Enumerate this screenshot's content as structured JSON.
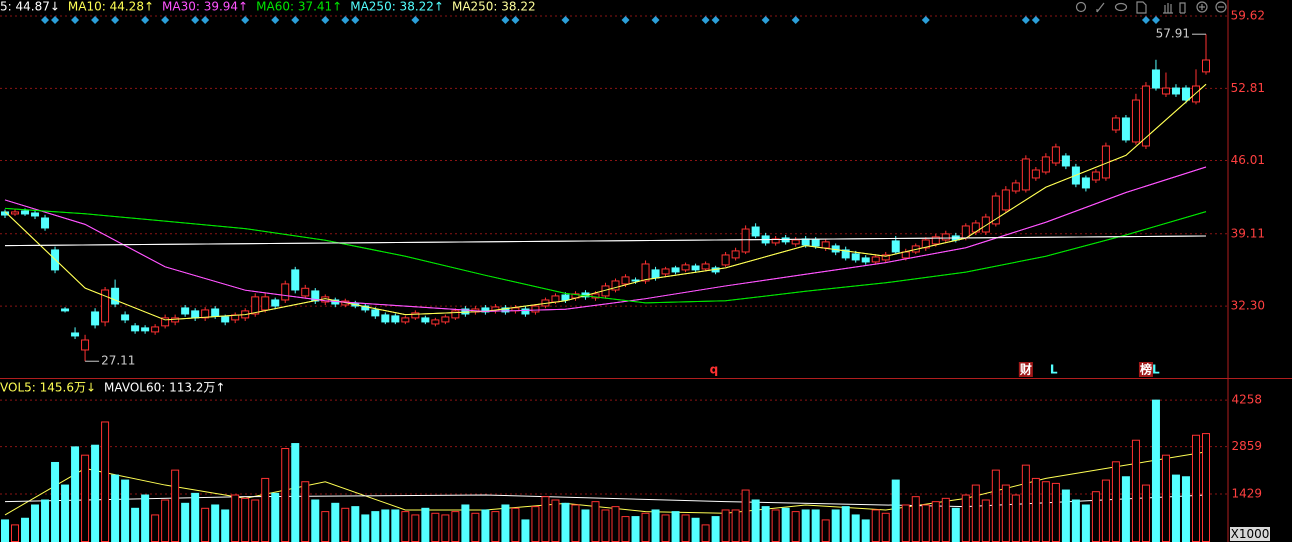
{
  "chart_data": {
    "type": "candlestick",
    "header": [
      {
        "label": "5: 44.87↓",
        "color": "#ffffff"
      },
      {
        "label": "MA10: 44.28↑",
        "color": "#ffff54"
      },
      {
        "label": "MA30: 39.94↑",
        "color": "#ff54ff"
      },
      {
        "label": "MA60: 37.41↑",
        "color": "#00e600"
      },
      {
        "label": "MA250: 38.22↑",
        "color": "#54ffff"
      },
      {
        "label": "MA250: 38.22",
        "color": "#ffff9c"
      }
    ],
    "up_color": "#ff3232",
    "down_color": "#54ffff",
    "open": [
      41.17,
      40.98,
      41.26,
      41.07,
      40.6,
      37.59,
      32.03,
      29.77,
      28.17,
      31.75,
      30.81,
      33.98,
      31.47,
      30.44,
      30.25,
      29.87,
      30.44,
      30.81,
      32.13,
      31.85,
      31.19,
      32.03,
      31.28,
      31.0,
      31.19,
      31.56,
      31.94,
      32.88,
      32.88,
      35.71,
      33.26,
      33.73,
      32.69,
      32.88,
      32.41,
      32.6,
      32.31,
      31.94,
      31.47,
      31.38,
      30.81,
      31.19,
      31.19,
      30.62,
      30.81,
      31.19,
      32.03,
      31.75,
      32.13,
      31.85,
      32.13,
      31.85,
      32.03,
      31.75,
      32.31,
      32.69,
      33.35,
      33.07,
      33.54,
      33.07,
      33.26,
      33.82,
      34.39,
      34.76,
      34.67,
      35.71,
      35.33,
      35.9,
      35.71,
      36.08,
      35.8,
      35.9,
      36.18,
      36.84,
      37.4,
      39.75,
      38.91,
      38.25,
      38.72,
      38.16,
      38.63,
      38.53,
      37.78,
      37.97,
      37.59,
      37.22,
      36.84,
      36.46,
      36.65,
      38.44,
      36.84,
      37.4,
      37.78,
      38.16,
      38.53,
      38.91,
      38.72,
      39.28,
      39.28,
      40.04,
      41.36,
      43.14,
      43.24,
      44.37,
      44.93,
      45.78,
      46.44,
      45.4,
      44.37,
      44.18,
      44.37,
      48.89,
      50.02,
      47.76,
      47.38,
      54.54,
      52.28,
      52.84,
      52.84,
      51.53,
      54.36
    ],
    "high": [
      41.4,
      41.4,
      41.5,
      41.3,
      40.9,
      37.9,
      32.2,
      30.3,
      29.6,
      32.1,
      34.1,
      34.8,
      31.8,
      30.7,
      30.5,
      30.6,
      31.5,
      31.5,
      32.4,
      32.1,
      32.2,
      32.3,
      31.5,
      31.7,
      32.1,
      33.5,
      33.5,
      33.1,
      34.7,
      36.0,
      34.3,
      34.0,
      33.4,
      33.1,
      33.0,
      32.8,
      32.5,
      32.2,
      31.7,
      31.6,
      31.4,
      31.9,
      31.4,
      31.2,
      31.5,
      32.1,
      32.3,
      32.3,
      32.4,
      32.5,
      32.4,
      32.4,
      32.3,
      32.5,
      33.1,
      33.5,
      33.6,
      33.7,
      33.8,
      33.7,
      34.5,
      34.9,
      35.3,
      35.0,
      36.6,
      36.0,
      36.0,
      36.1,
      36.4,
      36.3,
      36.5,
      36.1,
      37.4,
      37.8,
      39.9,
      40.1,
      39.2,
      38.9,
      39.0,
      38.8,
      38.9,
      38.8,
      38.6,
      38.2,
      37.9,
      37.5,
      37.1,
      37.2,
      37.4,
      38.9,
      37.7,
      38.2,
      38.8,
      39.1,
      39.4,
      39.2,
      40.1,
      40.4,
      41.0,
      43.0,
      43.6,
      44.2,
      46.5,
      45.4,
      46.7,
      47.6,
      46.7,
      45.7,
      44.6,
      45.2,
      47.7,
      50.3,
      50.3,
      52.3,
      53.4,
      55.5,
      54.3,
      53.2,
      53.1,
      54.6,
      57.91
    ],
    "low": [
      40.6,
      40.8,
      40.8,
      40.5,
      39.4,
      35.4,
      31.7,
      29.2,
      27.11,
      30.2,
      30.4,
      32.2,
      30.7,
      29.7,
      29.7,
      29.6,
      30.2,
      30.5,
      31.3,
      30.9,
      30.9,
      31.1,
      30.5,
      30.7,
      30.9,
      31.3,
      31.7,
      32.0,
      32.6,
      33.5,
      33.0,
      32.5,
      32.4,
      32.2,
      32.2,
      32.1,
      31.7,
      31.1,
      30.6,
      30.6,
      30.6,
      31.0,
      30.6,
      30.4,
      30.6,
      31.0,
      31.3,
      31.5,
      31.5,
      31.6,
      31.5,
      31.6,
      31.3,
      31.5,
      32.1,
      32.5,
      32.6,
      32.8,
      32.9,
      32.8,
      33.0,
      33.6,
      34.1,
      34.4,
      34.4,
      34.7,
      35.1,
      35.3,
      35.5,
      35.5,
      35.6,
      35.3,
      36.0,
      36.6,
      37.2,
      38.7,
      38.0,
      38.0,
      38.1,
      37.9,
      37.8,
      37.7,
      37.5,
      37.1,
      36.6,
      36.4,
      36.2,
      36.2,
      36.4,
      37.2,
      36.6,
      37.2,
      37.5,
      37.9,
      38.3,
      38.3,
      38.5,
      39.0,
      39.0,
      39.8,
      41.1,
      42.9,
      43.0,
      44.1,
      44.7,
      45.5,
      45.2,
      43.5,
      43.1,
      43.9,
      44.1,
      48.6,
      47.7,
      47.5,
      47.1,
      52.6,
      52.0,
      52.0,
      51.4,
      51.3,
      54.1
    ],
    "close": [
      40.88,
      41.17,
      40.98,
      40.79,
      39.66,
      35.71,
      31.85,
      29.49,
      29.11,
      30.53,
      33.82,
      32.5,
      31.0,
      29.97,
      29.97,
      30.34,
      31.19,
      31.19,
      31.56,
      31.19,
      31.94,
      31.38,
      30.81,
      31.47,
      31.85,
      33.17,
      33.17,
      32.31,
      34.39,
      33.82,
      33.98,
      32.78,
      33.17,
      32.5,
      32.78,
      32.31,
      31.94,
      31.38,
      30.81,
      30.81,
      31.19,
      31.66,
      30.81,
      31.0,
      31.28,
      31.85,
      31.56,
      32.03,
      31.75,
      32.22,
      31.75,
      32.13,
      31.56,
      32.31,
      32.88,
      33.26,
      32.88,
      33.45,
      33.17,
      33.45,
      34.2,
      34.67,
      35.05,
      34.67,
      36.27,
      34.95,
      35.8,
      35.52,
      36.18,
      35.71,
      36.27,
      35.52,
      37.12,
      37.5,
      39.56,
      38.91,
      38.25,
      38.63,
      38.35,
      38.53,
      38.06,
      37.97,
      38.35,
      37.4,
      36.84,
      36.65,
      36.46,
      36.93,
      37.12,
      37.4,
      37.4,
      37.97,
      38.53,
      38.82,
      39.1,
      38.53,
      39.85,
      40.13,
      40.69,
      42.67,
      43.24,
      43.9,
      46.16,
      45.12,
      46.35,
      47.29,
      45.5,
      43.8,
      43.43,
      44.93,
      47.38,
      50.02,
      47.95,
      51.71,
      53.03,
      52.84,
      52.84,
      52.28,
      51.71,
      53.03,
      55.48
    ],
    "volume": [
      650,
      500,
      700,
      1100,
      1250,
      2380,
      1700,
      2850,
      2600,
      2900,
      3600,
      2000,
      1850,
      1000,
      1400,
      800,
      1250,
      2150,
      1150,
      1450,
      1000,
      1100,
      950,
      1400,
      1300,
      1250,
      1900,
      1450,
      2800,
      2950,
      1800,
      1250,
      900,
      1150,
      1000,
      1050,
      800,
      900,
      950,
      950,
      900,
      800,
      1000,
      850,
      800,
      900,
      1100,
      850,
      950,
      900,
      1100,
      1000,
      650,
      1050,
      1350,
      1250,
      1150,
      1100,
      950,
      1200,
      950,
      1050,
      750,
      750,
      850,
      950,
      800,
      900,
      800,
      700,
      500,
      750,
      950,
      950,
      1550,
      1250,
      1050,
      950,
      1000,
      900,
      950,
      950,
      650,
      950,
      1050,
      800,
      650,
      950,
      850,
      1850,
      1100,
      1350,
      1100,
      1200,
      1300,
      1000,
      1400,
      1700,
      1250,
      2150,
      1700,
      1400,
      2300,
      1900,
      1800,
      1750,
      1550,
      1250,
      1100,
      1500,
      1850,
      2400,
      1950,
      3050,
      1700,
      4258,
      2600,
      2000,
      1950,
      3200,
      3250
    ],
    "ma_lines": [
      {
        "name": "MA10",
        "color": "#ffff54",
        "x": [
          0,
          8,
          16,
          24,
          32,
          40,
          48,
          56,
          64,
          72,
          80,
          88,
          96,
          104,
          112,
          120
        ],
        "values": [
          41.2,
          34.0,
          31.0,
          31.5,
          33.0,
          31.5,
          31.8,
          32.8,
          34.8,
          35.9,
          38.0,
          37.0,
          38.7,
          43.5,
          46.5,
          53.2
        ]
      },
      {
        "name": "MA30",
        "color": "#ff54ff",
        "x": [
          0,
          8,
          16,
          24,
          32,
          40,
          48,
          56,
          64,
          72,
          80,
          88,
          96,
          104,
          112,
          120
        ],
        "values": [
          42.3,
          40.0,
          36.0,
          33.8,
          32.8,
          32.3,
          31.8,
          32.0,
          33.0,
          34.2,
          35.3,
          36.4,
          37.8,
          40.2,
          43.0,
          45.4
        ]
      },
      {
        "name": "MA60",
        "color": "#00e600",
        "x": [
          0,
          8,
          16,
          24,
          32,
          40,
          48,
          56,
          64,
          72,
          80,
          88,
          96,
          104,
          112,
          120
        ],
        "values": [
          41.5,
          41.0,
          40.3,
          39.6,
          38.5,
          37.0,
          35.2,
          33.5,
          32.6,
          32.8,
          33.7,
          34.5,
          35.5,
          37.0,
          39.0,
          41.2
        ]
      },
      {
        "name": "MA250",
        "color": "#ffffff",
        "x": [
          0,
          120
        ],
        "values": [
          38.0,
          38.9
        ]
      }
    ],
    "signals": [
      4,
      5,
      7,
      9,
      11,
      14,
      16,
      19,
      20,
      24,
      27,
      29,
      32,
      34,
      35,
      41,
      50,
      51,
      56,
      62,
      65,
      70,
      71,
      76,
      79,
      92,
      102,
      103,
      114,
      115
    ],
    "signal_color": "#2b9fd9",
    "events": [
      {
        "index": 71,
        "label": "q",
        "color": "#ff3232"
      },
      {
        "index": 102,
        "label": "财",
        "color": "#ffffff",
        "background": "#a01818"
      },
      {
        "index": 105,
        "label": "L",
        "color": "#54ffff"
      },
      {
        "index": 114,
        "label": "榜",
        "color": "#ffffff",
        "background": "#a01818"
      },
      {
        "index": 115,
        "label": "L",
        "color": "#54ffff"
      }
    ],
    "ylim": [
      25.53,
      61.13
    ],
    "yticks": [
      59.62,
      52.81,
      46.01,
      39.11,
      {
        "value": 32.3,
        "label": "32.30"
      }
    ],
    "volume_header": [
      {
        "label": "VOL5: 145.6万↓",
        "color": "#ffff54"
      },
      {
        "label": "MAVOL60: 113.2万↑",
        "color": "#ffffff"
      }
    ],
    "volume_lines": [
      {
        "name": "MAVOL5",
        "color": "#ffff54",
        "x": [
          0,
          8,
          16,
          24,
          32,
          40,
          48,
          56,
          64,
          72,
          80,
          88,
          96,
          104,
          112,
          120
        ],
        "values": [
          800,
          2200,
          1700,
          1300,
          1800,
          950,
          950,
          1150,
          900,
          850,
          1100,
          950,
          1300,
          1900,
          2300,
          2700
        ]
      },
      {
        "name": "MAVOL60",
        "color": "#ffffff",
        "x": [
          0,
          24,
          48,
          72,
          96,
          120
        ],
        "values": [
          1200,
          1350,
          1400,
          1200,
          1050,
          1400
        ]
      }
    ],
    "volume_ylim": [
      0,
      4864
    ],
    "volume_yticks": [
      4258,
      2859,
      1429
    ],
    "volume_unit": "X1000"
  }
}
